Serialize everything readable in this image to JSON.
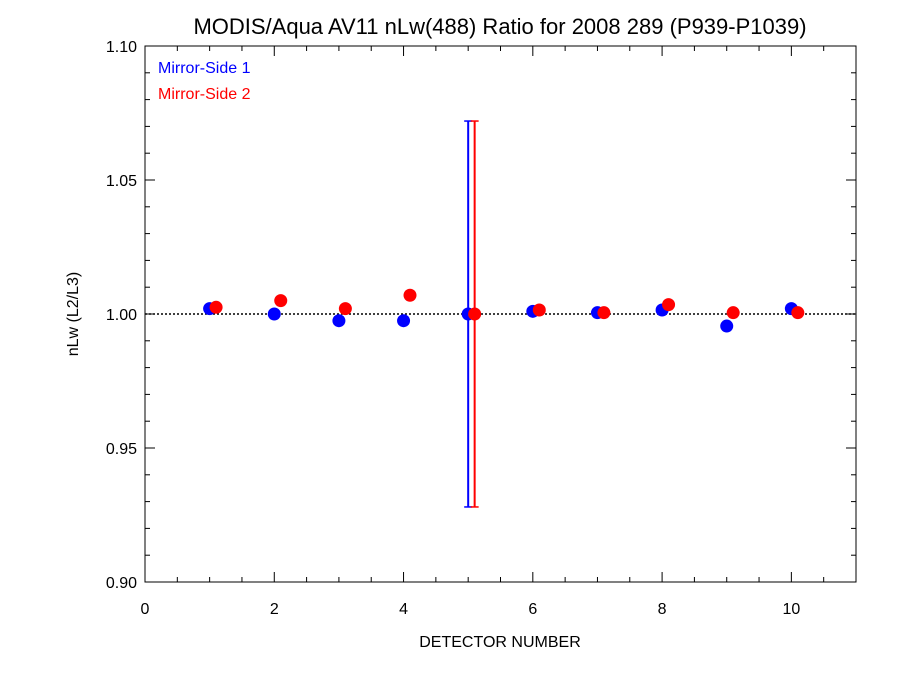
{
  "chart_data": {
    "type": "scatter",
    "title": "MODIS/Aqua AV11 nLw(488) Ratio for 2008 289 (P939-P1039)",
    "xlabel": "DETECTOR NUMBER",
    "ylabel": "nLw (L2/L3)",
    "xlim": [
      0,
      11
    ],
    "ylim": [
      0.9,
      1.1
    ],
    "xticks": [
      0,
      2,
      4,
      6,
      8,
      10
    ],
    "xtick_labels": [
      "0",
      "2",
      "4",
      "6",
      "8",
      "10"
    ],
    "yticks": [
      0.9,
      0.95,
      1.0,
      1.05,
      1.1
    ],
    "ytick_labels": [
      "0.90",
      "0.95",
      "1.00",
      "1.05",
      "1.10"
    ],
    "reference_line": 1.0,
    "grid": false,
    "legend_position": "top-left",
    "series": [
      {
        "name": "Mirror-Side 1",
        "color": "#0000ff",
        "x_offset": 0.0,
        "x": [
          1,
          2,
          3,
          4,
          5,
          6,
          7,
          8,
          9,
          10
        ],
        "y": [
          1.002,
          1.0,
          0.9975,
          0.9975,
          1.0,
          1.001,
          1.0005,
          1.0015,
          0.9955,
          1.002
        ],
        "error_bars": [
          {
            "x": 5,
            "low": 0.928,
            "high": 1.072
          }
        ]
      },
      {
        "name": "Mirror-Side 2",
        "color": "#ff0000",
        "x_offset": 0.1,
        "x": [
          1,
          2,
          3,
          4,
          5,
          6,
          7,
          8,
          9,
          10
        ],
        "y": [
          1.0025,
          1.005,
          1.002,
          1.007,
          1.0,
          1.0015,
          1.0005,
          1.0035,
          1.0005,
          1.0005
        ],
        "error_bars": [
          {
            "x": 5,
            "low": 0.928,
            "high": 1.072
          }
        ]
      }
    ]
  }
}
